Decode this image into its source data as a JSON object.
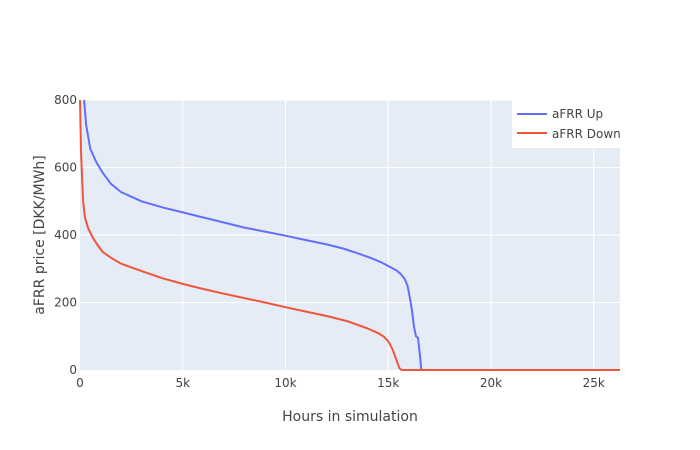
{
  "chart_data": {
    "type": "line",
    "xlabel": "Hours in simulation",
    "ylabel": "aFRR price [DKK/MWh]",
    "xlim": [
      0,
      26280
    ],
    "ylim": [
      0,
      800
    ],
    "x_ticks": [
      0,
      5000,
      10000,
      15000,
      20000,
      25000
    ],
    "x_tick_labels": [
      "0",
      "5k",
      "10k",
      "15k",
      "20k",
      "25k"
    ],
    "y_ticks": [
      0,
      200,
      400,
      600,
      800
    ],
    "y_tick_labels": [
      "0",
      "200",
      "400",
      "600",
      "800"
    ],
    "grid": true,
    "plot_bg": "#e5ecf6",
    "legend": {
      "placement": "top-right"
    },
    "series": [
      {
        "name": "aFRR Up",
        "color": "#636efa",
        "x": [
          200,
          300,
          500,
          800,
          1100,
          1500,
          2000,
          3000,
          4000,
          5000,
          6000,
          7000,
          8000,
          9000,
          10000,
          11000,
          12000,
          12800,
          13500,
          14200,
          14700,
          15100,
          15400,
          15600,
          15800,
          15950,
          16050,
          16150,
          16250,
          16300,
          16350,
          16450,
          16550,
          16600,
          16650,
          26280
        ],
        "y": [
          800,
          725,
          655,
          615,
          585,
          552,
          527,
          500,
          482,
          467,
          452,
          437,
          422,
          410,
          398,
          385,
          372,
          360,
          346,
          331,
          318,
          305,
          295,
          285,
          270,
          248,
          215,
          180,
          130,
          115,
          100,
          95,
          40,
          5,
          0,
          0
        ]
      },
      {
        "name": "aFRR Down",
        "color": "#ef553b",
        "x": [
          0,
          50,
          100,
          150,
          250,
          400,
          600,
          800,
          1100,
          1500,
          2000,
          3000,
          4000,
          5000,
          6000,
          7000,
          8000,
          9000,
          10000,
          11000,
          12000,
          13000,
          14000,
          14500,
          14800,
          15000,
          15200,
          15400,
          15550,
          15650,
          26280
        ],
        "y": [
          800,
          650,
          570,
          500,
          450,
          420,
          395,
          375,
          350,
          333,
          315,
          293,
          272,
          255,
          240,
          226,
          213,
          200,
          186,
          173,
          160,
          145,
          123,
          110,
          98,
          85,
          63,
          30,
          5,
          0,
          0
        ]
      }
    ]
  }
}
